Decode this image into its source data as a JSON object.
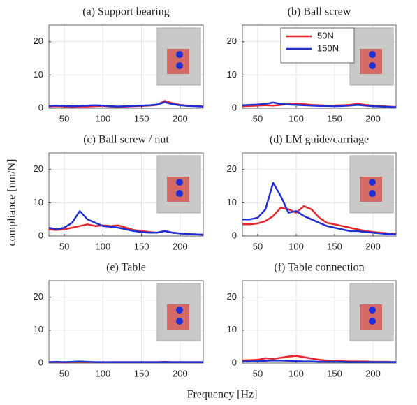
{
  "figure": {
    "ylabel": "compliance [nm/N]",
    "xlabel": "Frequency [Hz]"
  },
  "chart_data": [
    {
      "type": "line",
      "title": "(a) Support bearing",
      "xlim": [
        30,
        230
      ],
      "ylim": [
        0,
        25
      ],
      "xticks": [
        50,
        100,
        150,
        200
      ],
      "yticks": [
        0,
        10,
        20
      ],
      "grid": true,
      "legend": false,
      "x": [
        30,
        40,
        50,
        60,
        70,
        80,
        90,
        100,
        110,
        120,
        130,
        140,
        150,
        160,
        170,
        180,
        190,
        200,
        210,
        220,
        230
      ],
      "series": [
        {
          "color": "#e8262b",
          "values": [
            0.5,
            0.6,
            0.5,
            0.4,
            0.5,
            0.5,
            0.6,
            0.7,
            0.5,
            0.4,
            0.5,
            0.6,
            0.7,
            0.8,
            1.0,
            2.2,
            1.5,
            1.0,
            0.8,
            0.6,
            0.5
          ]
        },
        {
          "color": "#1f2fd6",
          "values": [
            0.7,
            0.8,
            0.7,
            0.6,
            0.7,
            0.8,
            0.9,
            0.8,
            0.6,
            0.5,
            0.6,
            0.7,
            0.8,
            0.9,
            1.1,
            1.8,
            1.2,
            0.9,
            0.7,
            0.6,
            0.5
          ]
        }
      ]
    },
    {
      "type": "line",
      "title": "(b) Ball screw",
      "xlim": [
        30,
        230
      ],
      "ylim": [
        0,
        25
      ],
      "xticks": [
        50,
        100,
        150,
        200
      ],
      "yticks": [
        0,
        10,
        20
      ],
      "grid": true,
      "legend": "top",
      "x": [
        30,
        40,
        50,
        60,
        70,
        80,
        90,
        100,
        110,
        120,
        130,
        140,
        150,
        160,
        170,
        180,
        190,
        200,
        210,
        220,
        230
      ],
      "series": [
        {
          "name": "50N",
          "color": "#e8262b",
          "values": [
            0.6,
            0.7,
            0.8,
            0.9,
            0.8,
            1.0,
            1.2,
            1.3,
            1.2,
            1.0,
            0.9,
            0.8,
            0.8,
            0.9,
            1.0,
            1.3,
            1.0,
            0.8,
            0.6,
            0.5,
            0.4
          ]
        },
        {
          "name": "150N",
          "color": "#1f2fd6",
          "values": [
            0.9,
            1.0,
            1.1,
            1.3,
            1.7,
            1.3,
            1.1,
            1.0,
            0.9,
            0.8,
            0.7,
            0.7,
            0.6,
            0.7,
            0.8,
            1.0,
            0.8,
            0.6,
            0.5,
            0.4,
            0.3
          ]
        }
      ]
    },
    {
      "type": "line",
      "title": "(c) Ball screw / nut",
      "xlim": [
        30,
        230
      ],
      "ylim": [
        0,
        25
      ],
      "xticks": [
        50,
        100,
        150,
        200
      ],
      "yticks": [
        0,
        10,
        20
      ],
      "grid": true,
      "legend": false,
      "x": [
        30,
        40,
        50,
        60,
        70,
        80,
        90,
        100,
        110,
        120,
        130,
        140,
        150,
        160,
        170,
        180,
        190,
        200,
        210,
        220,
        230
      ],
      "series": [
        {
          "color": "#e8262b",
          "values": [
            2,
            1.8,
            2,
            2.5,
            3,
            3.5,
            3,
            3.2,
            3,
            3.2,
            2.5,
            1.8,
            1.5,
            1.2,
            1,
            1.5,
            1,
            0.8,
            0.6,
            0.5,
            0.4
          ]
        },
        {
          "color": "#1f2fd6",
          "values": [
            2.5,
            2,
            2.5,
            4,
            7.5,
            5,
            4,
            3,
            2.8,
            2.5,
            2,
            1.5,
            1.2,
            1,
            1,
            1.5,
            1,
            0.8,
            0.6,
            0.5,
            0.4
          ]
        }
      ]
    },
    {
      "type": "line",
      "title": "(d) LM guide/carriage",
      "xlim": [
        30,
        230
      ],
      "ylim": [
        0,
        25
      ],
      "xticks": [
        50,
        100,
        150,
        200
      ],
      "yticks": [
        0,
        10,
        20
      ],
      "grid": true,
      "legend": false,
      "x": [
        30,
        40,
        50,
        60,
        70,
        80,
        90,
        100,
        110,
        120,
        130,
        140,
        150,
        160,
        170,
        180,
        190,
        200,
        210,
        220,
        230
      ],
      "series": [
        {
          "color": "#e8262b",
          "values": [
            3.5,
            3.5,
            3.8,
            4.5,
            6,
            8.5,
            8,
            7,
            9,
            8,
            5.5,
            4,
            3.5,
            3,
            2.5,
            2,
            1.5,
            1.2,
            1,
            0.8,
            0.6
          ]
        },
        {
          "color": "#1f2fd6",
          "values": [
            5,
            5,
            5.5,
            8,
            16,
            12,
            7,
            7.5,
            6,
            5,
            4,
            3,
            2.5,
            2,
            1.5,
            1.5,
            1.2,
            1,
            0.8,
            0.6,
            0.5
          ]
        }
      ]
    },
    {
      "type": "line",
      "title": "(e) Table",
      "xlim": [
        30,
        230
      ],
      "ylim": [
        0,
        25
      ],
      "xticks": [
        50,
        100,
        150,
        200
      ],
      "yticks": [
        0,
        10,
        20
      ],
      "grid": true,
      "legend": false,
      "x": [
        30,
        40,
        50,
        60,
        70,
        80,
        90,
        100,
        110,
        120,
        130,
        140,
        150,
        160,
        170,
        180,
        190,
        200,
        210,
        220,
        230
      ],
      "series": [
        {
          "color": "#e8262b",
          "values": [
            0.3,
            0.3,
            0.2,
            0.3,
            0.4,
            0.3,
            0.3,
            0.2,
            0.3,
            0.3,
            0.3,
            0.3,
            0.3,
            0.3,
            0.3,
            0.4,
            0.3,
            0.3,
            0.3,
            0.3,
            0.3
          ]
        },
        {
          "color": "#1f2fd6",
          "values": [
            0.3,
            0.4,
            0.3,
            0.4,
            0.5,
            0.4,
            0.3,
            0.3,
            0.3,
            0.3,
            0.3,
            0.3,
            0.3,
            0.3,
            0.3,
            0.3,
            0.3,
            0.3,
            0.3,
            0.3,
            0.3
          ]
        }
      ]
    },
    {
      "type": "line",
      "title": "(f) Table connection",
      "xlim": [
        30,
        230
      ],
      "ylim": [
        0,
        25
      ],
      "xticks": [
        50,
        100,
        150,
        200
      ],
      "yticks": [
        0,
        10,
        20
      ],
      "grid": true,
      "legend": false,
      "x": [
        30,
        40,
        50,
        60,
        70,
        80,
        90,
        100,
        110,
        120,
        130,
        140,
        150,
        160,
        170,
        180,
        190,
        200,
        210,
        220,
        230
      ],
      "series": [
        {
          "color": "#e8262b",
          "values": [
            0.8,
            0.9,
            1.0,
            1.5,
            1.3,
            1.6,
            2.0,
            2.2,
            1.8,
            1.4,
            1.0,
            0.8,
            0.7,
            0.6,
            0.5,
            0.5,
            0.5,
            0.4,
            0.4,
            0.4,
            0.3
          ]
        },
        {
          "color": "#1f2fd6",
          "values": [
            0.5,
            0.5,
            0.6,
            0.7,
            0.8,
            0.8,
            0.7,
            0.6,
            0.5,
            0.5,
            0.4,
            0.4,
            0.4,
            0.4,
            0.3,
            0.3,
            0.3,
            0.3,
            0.3,
            0.3,
            0.3
          ]
        }
      ]
    }
  ]
}
